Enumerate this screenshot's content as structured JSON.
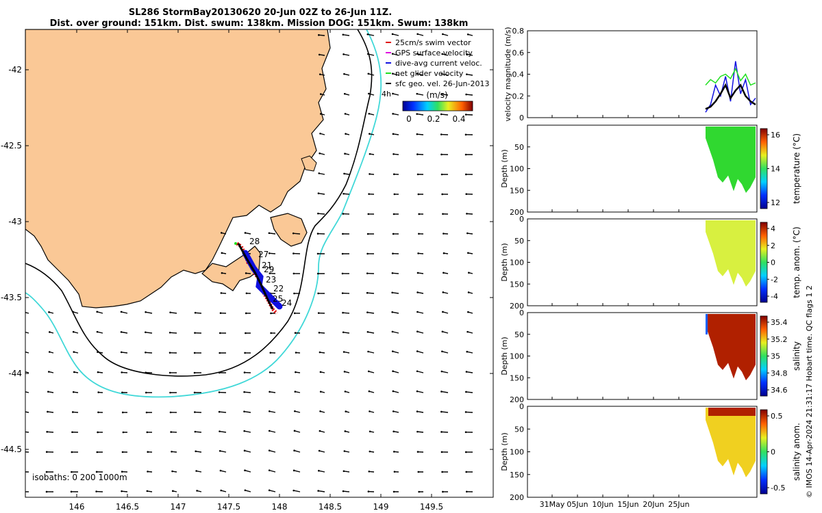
{
  "title": {
    "line1": "SL286 StormBay20130620 20-Jun 02Z to 26-Jun 11Z.",
    "line2": "Dist. over ground: 151km. Dist. swum: 138km. Mission DOG: 151km. Swum: 138km"
  },
  "colors": {
    "land": "#fac896",
    "isobath_200": "#000000",
    "isobath_1000": "#40d8d8",
    "track_red": "#e00000",
    "track_blue": "#1010e0",
    "track_black": "#000000"
  },
  "map": {
    "lon_ticks": [
      "146",
      "146.5",
      "147",
      "147.5",
      "148",
      "148.5",
      "149",
      "149.5"
    ],
    "lat_ticks": [
      "-42",
      "-42.5",
      "-43",
      "-43.5",
      "-44",
      "-44.5"
    ],
    "isobath_label": "isobaths: 0   200  1000m",
    "day_labels": [
      "28",
      "27",
      "21",
      "29",
      "23",
      "22",
      "25",
      "24"
    ],
    "time_tag": "4h",
    "legend": [
      {
        "label": "25cm/s swim vector",
        "color": "#e00000"
      },
      {
        "label": "GPS surface velocity",
        "color": "#e000e0"
      },
      {
        "label": "dive-avg current veloc.",
        "color": "#1010e0"
      },
      {
        "label": "net glider velocity",
        "color": "#20e020"
      },
      {
        "label": "sfc geo. vel. 26-Jun-2013",
        "color": "#000000"
      }
    ],
    "colorbar": {
      "unit": "(m/s)",
      "ticks": [
        "0",
        "0.2",
        "0.4"
      ]
    }
  },
  "chart_data": [
    {
      "type": "line",
      "title": "",
      "ylabel": "velocity magnitude (m/s)",
      "ylim": [
        0,
        0.8
      ],
      "yticks": [
        "0",
        "0.2",
        "0.4",
        "0.6",
        "0.8"
      ],
      "x_ticks": [
        "31May",
        "05Jun",
        "10Jun",
        "15Jun",
        "20Jun",
        "25Jun"
      ],
      "series": [
        {
          "name": "dive-avg current",
          "values": [
            0.05,
            0.12,
            0.3,
            0.2,
            0.38,
            0.15,
            0.52,
            0.22,
            0.35,
            0.12,
            0.18
          ]
        },
        {
          "name": "net glider velocity",
          "values": [
            0.3,
            0.35,
            0.32,
            0.38,
            0.4,
            0.36,
            0.45,
            0.34,
            0.4,
            0.3,
            0.32
          ]
        },
        {
          "name": "sfc geo. vel.",
          "values": [
            0.08,
            0.1,
            0.15,
            0.22,
            0.3,
            0.18,
            0.25,
            0.3,
            0.2,
            0.15,
            0.12
          ]
        }
      ]
    },
    {
      "type": "heatmap",
      "ylabel": "Depth (m)",
      "yticks": [
        "50",
        "100",
        "150",
        "200"
      ],
      "colorbar_label": "temperature (°C)",
      "colorbar_ticks": [
        "16",
        "14",
        "12"
      ],
      "clim": [
        11.5,
        16.8
      ]
    },
    {
      "type": "heatmap",
      "ylabel": "Depth (m)",
      "yticks": [
        "0",
        "50",
        "100",
        "150",
        "200"
      ],
      "colorbar_label": "temp. anom. (°C)",
      "colorbar_ticks": [
        "4",
        "2",
        "0",
        "-2",
        "-4"
      ],
      "clim": [
        -4,
        4
      ]
    },
    {
      "type": "heatmap",
      "ylabel": "Depth (m)",
      "yticks": [
        "0",
        "50",
        "100",
        "150",
        "200"
      ],
      "colorbar_label": "salinity",
      "colorbar_ticks": [
        "35.4",
        "35.2",
        "35",
        "34.8",
        "34.6"
      ],
      "clim": [
        34.5,
        35.45
      ]
    },
    {
      "type": "heatmap",
      "ylabel": "Depth (m)",
      "yticks": [
        "0",
        "50",
        "100",
        "150",
        "200"
      ],
      "colorbar_label": "salinity anom.",
      "colorbar_ticks": [
        "0.5",
        "0",
        "-0.5"
      ],
      "clim": [
        -0.5,
        0.5
      ]
    }
  ],
  "footer": "© IMOS 14-Apr-2024 21:31:17 Hobart time. QC flags 1  2"
}
